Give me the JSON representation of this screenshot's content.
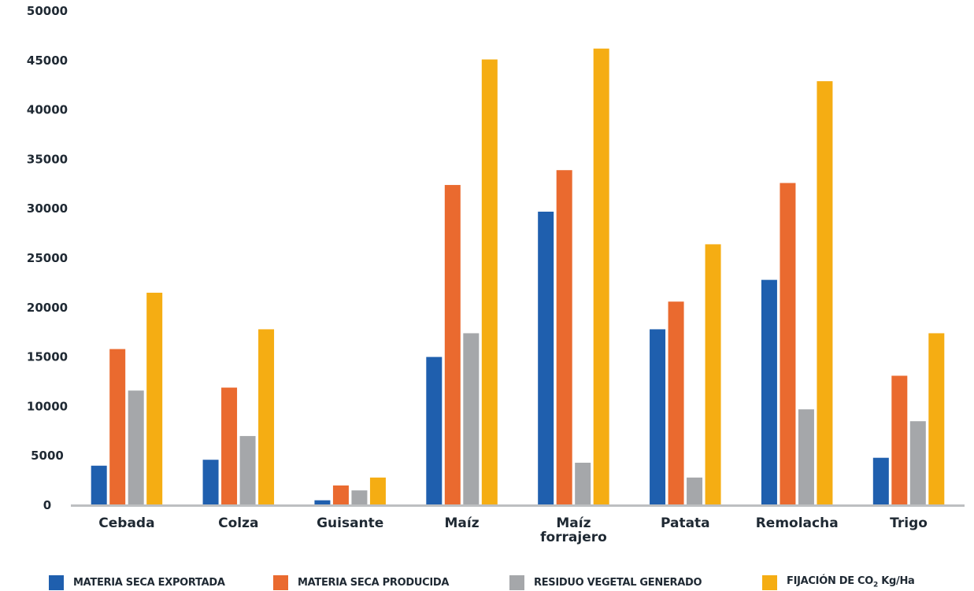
{
  "chart_data": {
    "type": "bar",
    "title": "",
    "xlabel": "",
    "ylabel": "",
    "ylim": [
      0,
      50000
    ],
    "y_ticks": [
      "50000",
      "45000",
      "40000",
      "35000",
      "30000",
      "25000",
      "20000",
      "15000",
      "10000",
      "5000",
      "0"
    ],
    "categories": [
      "Cebada",
      "Colza",
      "Guisante",
      "Maíz",
      "Maíz forrajero",
      "Patata",
      "Remolacha",
      "Trigo"
    ],
    "category_lines": [
      [
        "Cebada"
      ],
      [
        "Colza"
      ],
      [
        "Guisante"
      ],
      [
        "Maíz"
      ],
      [
        "Maíz",
        "forrajero"
      ],
      [
        "Patata"
      ],
      [
        "Remolacha"
      ],
      [
        "Trigo"
      ]
    ],
    "series": [
      {
        "name": "MATERIA SECA EXPORTADA",
        "color": "#1f5fae",
        "values": [
          4000,
          4600,
          500,
          15000,
          29700,
          17800,
          22800,
          4800
        ]
      },
      {
        "name": "MATERIA SECA PRODUCIDA",
        "color": "#ea6a2f",
        "values": [
          15800,
          11900,
          2000,
          32400,
          33900,
          20600,
          32600,
          13100
        ]
      },
      {
        "name": "RESIDUO VEGETAL GENERADO",
        "color": "#a5a7aa",
        "values": [
          11600,
          7000,
          1500,
          17400,
          4300,
          2800,
          9700,
          8500
        ]
      },
      {
        "name": "FIJACIÓN DE CO₂ Kg/Ha",
        "color": "#f5ad13",
        "values": [
          21500,
          17800,
          2800,
          45100,
          46200,
          26400,
          42900,
          17400
        ]
      }
    ],
    "legend_position": "bottom",
    "grid": false
  },
  "legend": {
    "items": [
      {
        "label": "MATERIA SECA EXPORTADA",
        "color": "#1f5fae"
      },
      {
        "label": "MATERIA SECA PRODUCIDA",
        "color": "#ea6a2f"
      },
      {
        "label": "RESIDUO VEGETAL GENERADO",
        "color": "#a5a7aa"
      },
      {
        "label_prefix": "FIJACIÓN DE CO",
        "label_sub": "2",
        "label_suffix": " Kg/Ha",
        "color": "#f5ad13"
      }
    ]
  }
}
